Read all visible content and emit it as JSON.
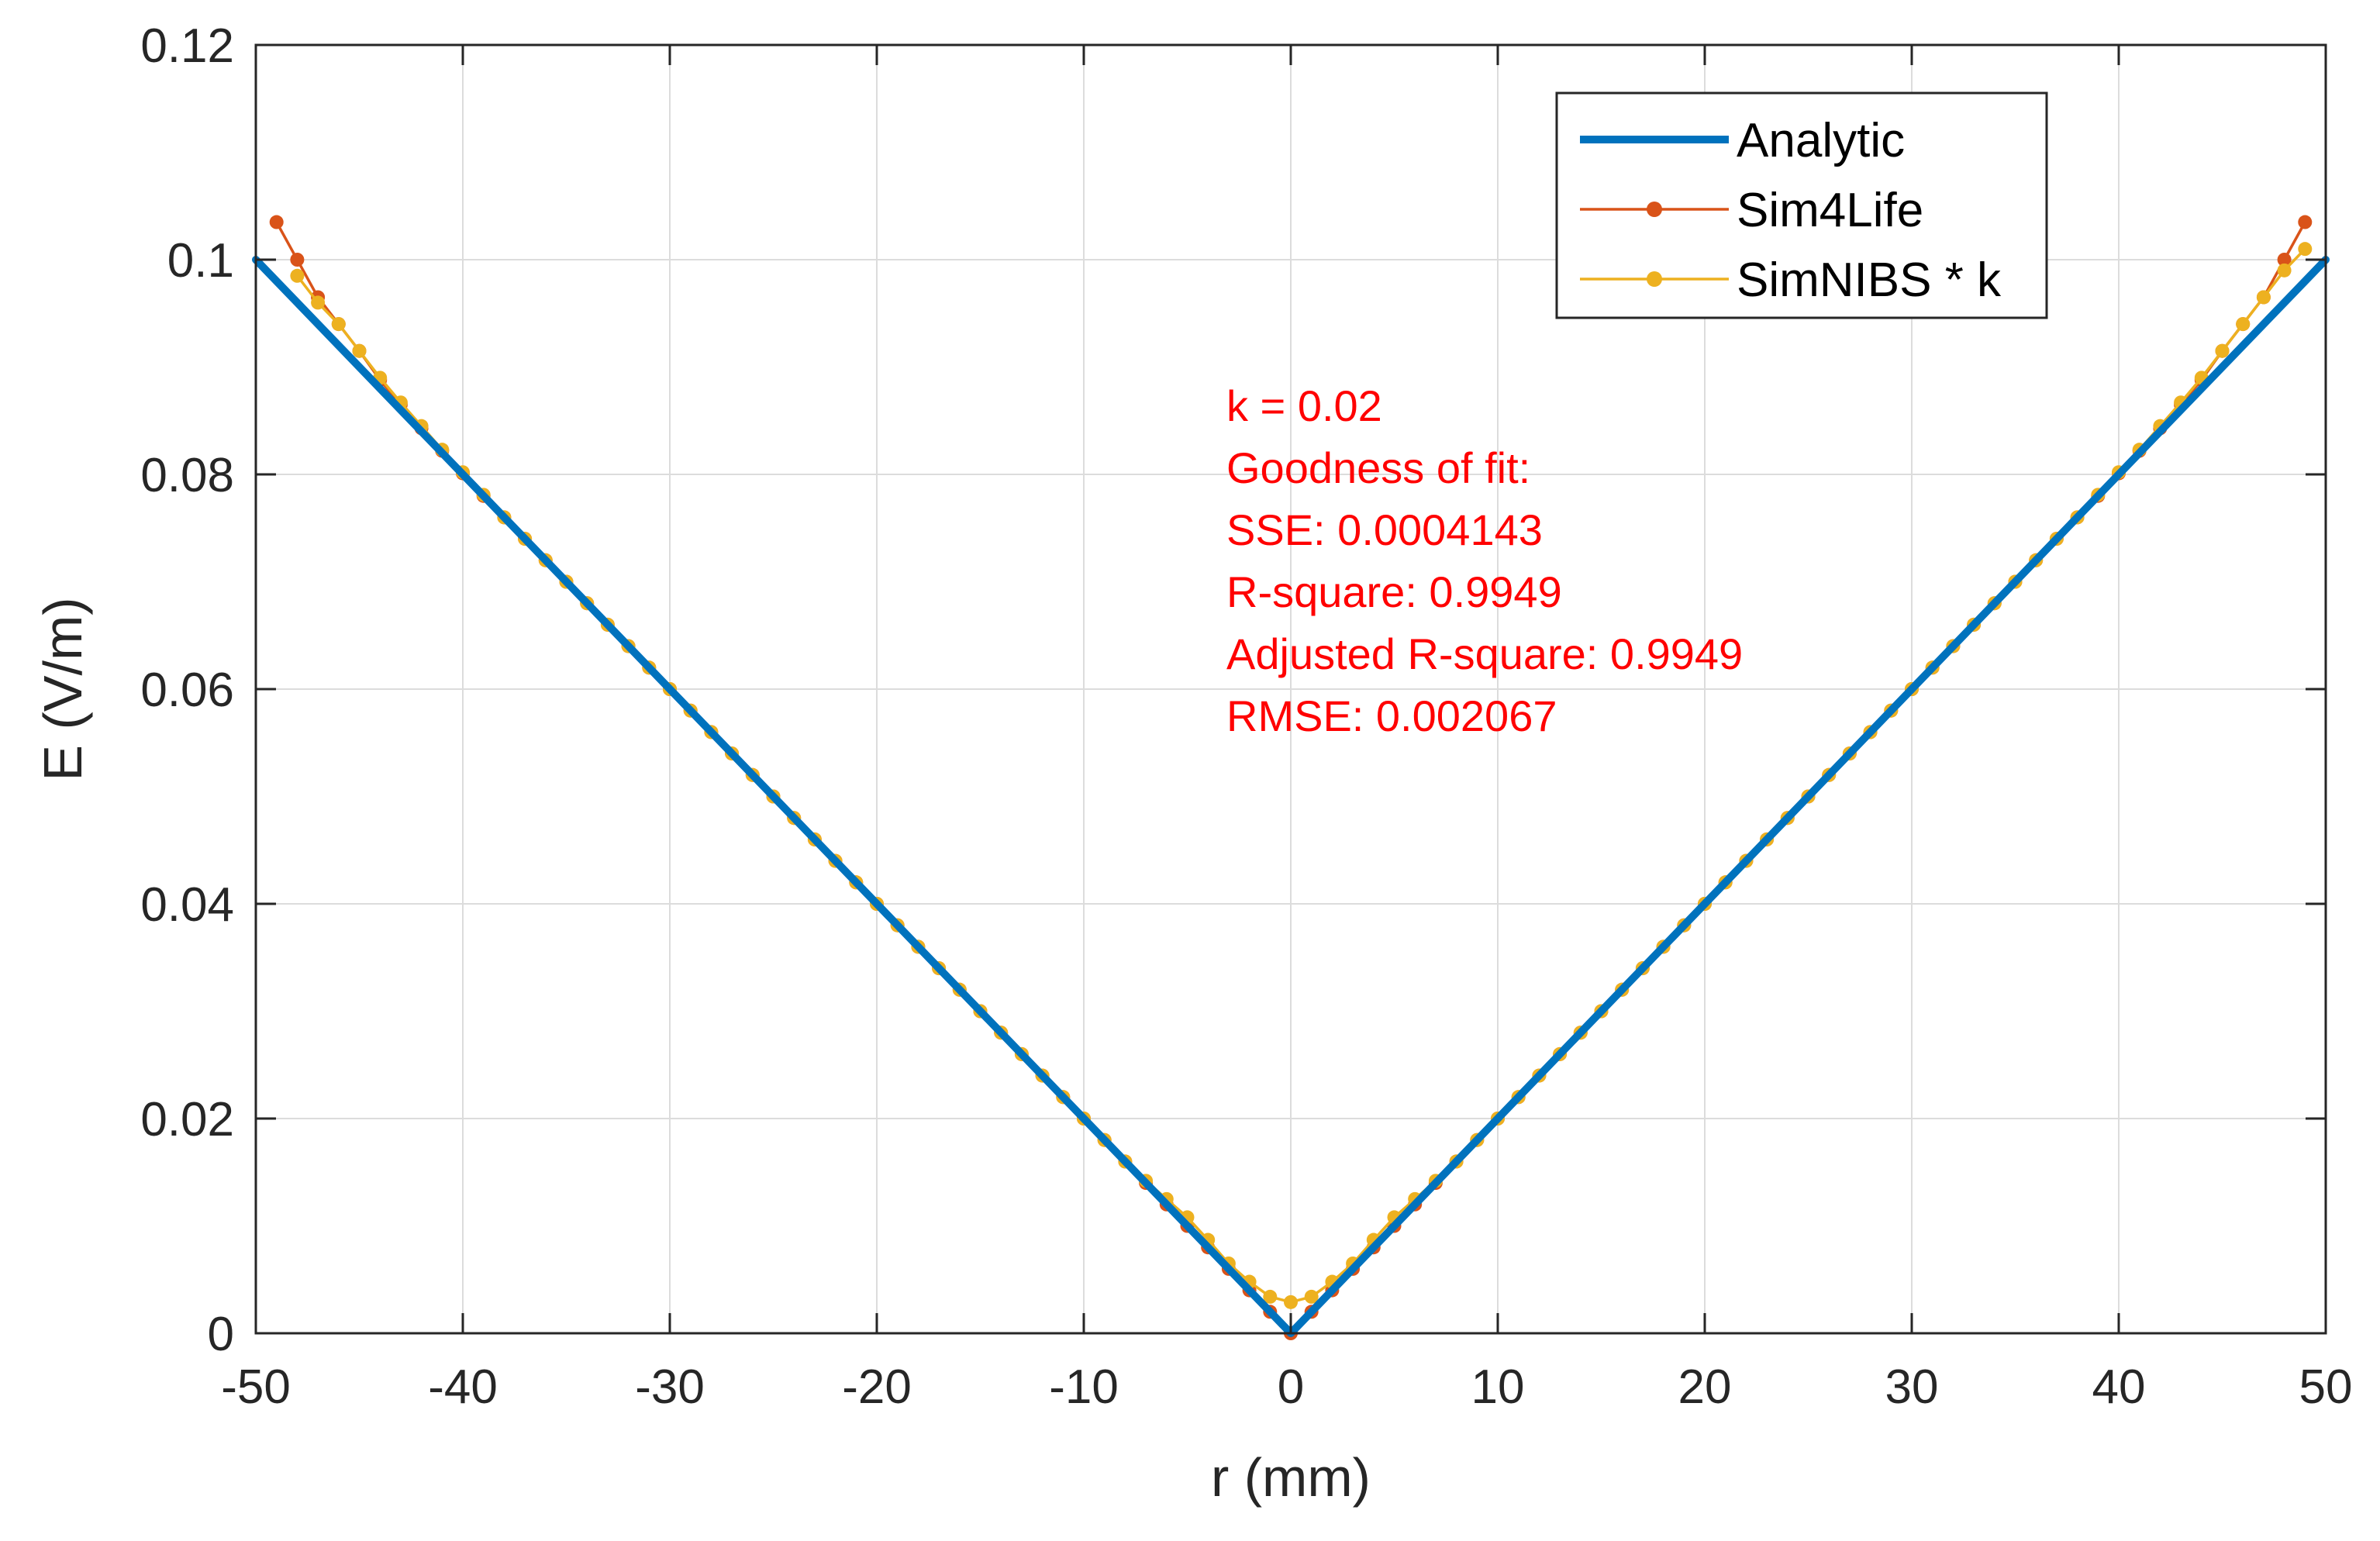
{
  "chart_data": {
    "type": "line",
    "title": "",
    "xlabel": "r (mm)",
    "ylabel": "E (V/m)",
    "xlim": [
      -50,
      50
    ],
    "ylim": [
      0,
      0.12
    ],
    "xticks": [
      -50,
      -40,
      -30,
      -20,
      -10,
      0,
      10,
      20,
      30,
      40,
      50
    ],
    "yticks": [
      0,
      0.02,
      0.04,
      0.06,
      0.08,
      0.1,
      0.12
    ],
    "xtick_labels": [
      "-50",
      "-40",
      "-30",
      "-20",
      "-10",
      "0",
      "10",
      "20",
      "30",
      "40",
      "50"
    ],
    "ytick_labels": [
      "0",
      "0.02",
      "0.04",
      "0.06",
      "0.08",
      "0.1",
      "0.12"
    ],
    "grid": true,
    "legend_position": "top-right",
    "series": [
      {
        "name": "Analytic",
        "color": "#0072BD",
        "marker": "none",
        "x": [
          -50,
          0,
          50
        ],
        "y": [
          0.1,
          0,
          0.1
        ]
      },
      {
        "name": "Sim4Life",
        "color": "#D95319",
        "marker": "dot",
        "x": [
          -49,
          -48,
          -47,
          -46,
          -45,
          -44,
          -43,
          -42,
          -41,
          -40,
          -39,
          -38,
          -37,
          -36,
          -35,
          -34,
          -33,
          -32,
          -31,
          -30,
          -29,
          -28,
          -27,
          -26,
          -25,
          -24,
          -23,
          -22,
          -21,
          -20,
          -19,
          -18,
          -17,
          -16,
          -15,
          -14,
          -13,
          -12,
          -11,
          -10,
          -9,
          -8,
          -7,
          -6,
          -5,
          -4,
          -3,
          -2,
          -1,
          0,
          1,
          2,
          3,
          4,
          5,
          6,
          7,
          8,
          9,
          10,
          11,
          12,
          13,
          14,
          15,
          16,
          17,
          18,
          19,
          20,
          21,
          22,
          23,
          24,
          25,
          26,
          27,
          28,
          29,
          30,
          31,
          32,
          33,
          34,
          35,
          36,
          37,
          38,
          39,
          40,
          41,
          42,
          43,
          44,
          45,
          46,
          47,
          48,
          49
        ],
        "y": [
          0.1035,
          0.1,
          0.0965,
          0.094,
          0.0915,
          0.0888,
          0.0865,
          0.0843,
          0.0822,
          0.0801,
          0.078,
          0.076,
          0.074,
          0.072,
          0.07,
          0.068,
          0.066,
          0.064,
          0.062,
          0.06,
          0.058,
          0.056,
          0.054,
          0.052,
          0.05,
          0.048,
          0.046,
          0.044,
          0.042,
          0.04,
          0.038,
          0.036,
          0.034,
          0.032,
          0.03,
          0.028,
          0.026,
          0.024,
          0.022,
          0.02,
          0.018,
          0.016,
          0.014,
          0.012,
          0.01,
          0.008,
          0.006,
          0.004,
          0.002,
          0.0,
          0.002,
          0.004,
          0.006,
          0.008,
          0.01,
          0.012,
          0.014,
          0.016,
          0.018,
          0.02,
          0.022,
          0.024,
          0.026,
          0.028,
          0.03,
          0.032,
          0.034,
          0.036,
          0.038,
          0.04,
          0.042,
          0.044,
          0.046,
          0.048,
          0.05,
          0.052,
          0.054,
          0.056,
          0.058,
          0.06,
          0.062,
          0.064,
          0.066,
          0.068,
          0.07,
          0.072,
          0.074,
          0.076,
          0.078,
          0.0801,
          0.0822,
          0.0843,
          0.0865,
          0.0888,
          0.0915,
          0.094,
          0.0965,
          0.1,
          0.1035
        ]
      },
      {
        "name": "SimNIBS * k",
        "color": "#EDB120",
        "marker": "dot",
        "x": [
          -48,
          -47,
          -46,
          -45,
          -44,
          -43,
          -42,
          -41,
          -40,
          -39,
          -38,
          -37,
          -36,
          -35,
          -34,
          -33,
          -32,
          -31,
          -30,
          -29,
          -28,
          -27,
          -26,
          -25,
          -24,
          -23,
          -22,
          -21,
          -20,
          -19,
          -18,
          -17,
          -16,
          -15,
          -14,
          -13,
          -12,
          -11,
          -10,
          -9,
          -8,
          -7,
          -6,
          -5,
          -4,
          -3,
          -2,
          -1,
          0,
          1,
          2,
          3,
          4,
          5,
          6,
          7,
          8,
          9,
          10,
          11,
          12,
          13,
          14,
          15,
          16,
          17,
          18,
          19,
          20,
          21,
          22,
          23,
          24,
          25,
          26,
          27,
          28,
          29,
          30,
          31,
          32,
          33,
          34,
          35,
          36,
          37,
          38,
          39,
          40,
          41,
          42,
          43,
          44,
          45,
          46,
          47,
          48,
          49
        ],
        "y": [
          0.0985,
          0.096,
          0.094,
          0.0915,
          0.089,
          0.0867,
          0.0845,
          0.0823,
          0.0802,
          0.0781,
          0.076,
          0.074,
          0.072,
          0.07,
          0.068,
          0.066,
          0.064,
          0.062,
          0.06,
          0.058,
          0.056,
          0.054,
          0.052,
          0.05,
          0.048,
          0.046,
          0.044,
          0.042,
          0.04,
          0.038,
          0.036,
          0.034,
          0.032,
          0.03,
          0.028,
          0.026,
          0.024,
          0.022,
          0.02,
          0.018,
          0.016,
          0.0142,
          0.0125,
          0.0108,
          0.0087,
          0.0065,
          0.0048,
          0.0034,
          0.0029,
          0.0034,
          0.0048,
          0.0065,
          0.0087,
          0.0108,
          0.0125,
          0.0142,
          0.016,
          0.018,
          0.02,
          0.022,
          0.024,
          0.026,
          0.028,
          0.03,
          0.032,
          0.034,
          0.036,
          0.038,
          0.04,
          0.042,
          0.044,
          0.046,
          0.048,
          0.05,
          0.052,
          0.054,
          0.056,
          0.058,
          0.06,
          0.062,
          0.064,
          0.066,
          0.068,
          0.07,
          0.072,
          0.074,
          0.076,
          0.0781,
          0.0802,
          0.0823,
          0.0845,
          0.0867,
          0.089,
          0.0915,
          0.094,
          0.0965,
          0.099,
          0.101
        ]
      }
    ],
    "annotation": {
      "color": "#FF0000",
      "lines": [
        "k = 0.02",
        "Goodness of fit:",
        "  SSE: 0.0004143",
        "  R-square: 0.9949",
        "  Adjusted R-square: 0.9949",
        "  RMSE: 0.002067"
      ]
    }
  }
}
